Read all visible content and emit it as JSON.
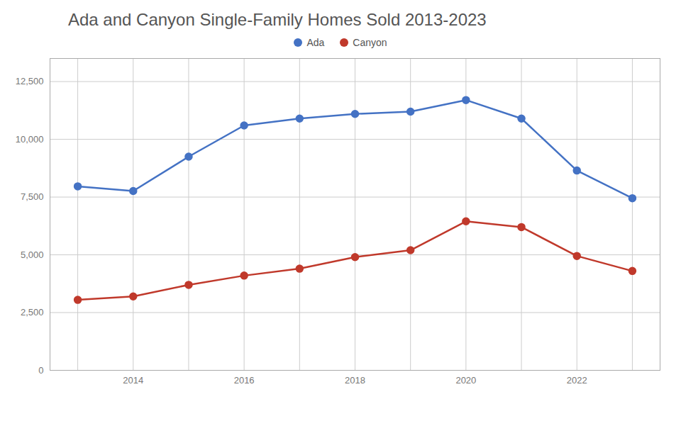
{
  "chart_data": {
    "type": "line",
    "title": "Ada and Canyon Single-Family Homes Sold 2013-2023",
    "x": [
      2013,
      2014,
      2015,
      2016,
      2017,
      2018,
      2019,
      2020,
      2021,
      2022,
      2023
    ],
    "series": [
      {
        "name": "Ada",
        "color": "#4472C4",
        "values": [
          7964,
          7764,
          9250,
          10600,
          10900,
          11100,
          11200,
          11700,
          10900,
          8650,
          7450
        ]
      },
      {
        "name": "Canyon",
        "color": "#C0392B",
        "values": [
          3050,
          3200,
          3700,
          4100,
          4400,
          4900,
          5200,
          6450,
          6200,
          4950,
          4300
        ]
      }
    ],
    "xlim": [
      2012.5,
      2023.5
    ],
    "xticks": [
      {
        "value": 2013,
        "label": null
      },
      2014,
      {
        "value": 2015,
        "label": null
      },
      2016,
      {
        "value": 2017,
        "label": null
      },
      2018,
      {
        "value": 2019,
        "label": null
      },
      2020,
      {
        "value": 2021,
        "label": null
      },
      2022,
      {
        "value": 2023,
        "label": null
      }
    ],
    "ylim": [
      0,
      13500
    ],
    "yticks": [
      0,
      {
        "value": 2500,
        "label": "2,500"
      },
      {
        "value": 5000,
        "label": "5,000"
      },
      {
        "value": 7500,
        "label": "7,500"
      },
      {
        "value": 10000,
        "label": "10,000"
      },
      {
        "value": 12500,
        "label": "12,500"
      }
    ],
    "grid": true,
    "legend": "top",
    "marker": "circle"
  }
}
